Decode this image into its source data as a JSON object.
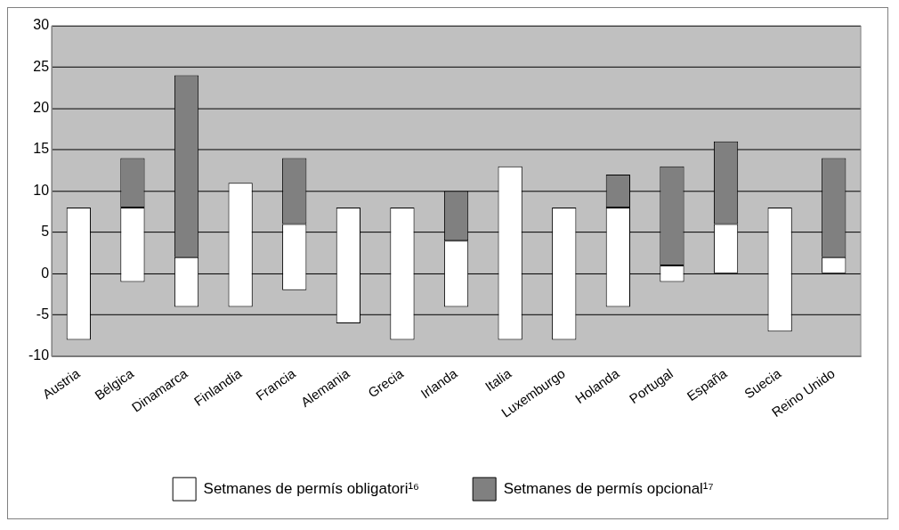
{
  "chart_data": {
    "type": "bar",
    "categories": [
      "Austria",
      "Bélgica",
      "Dinamarca",
      "Finlandia",
      "Francia",
      "Alemania",
      "Grecia",
      "Irlanda",
      "Italia",
      "Luxemburgo",
      "Holanda",
      "Portugal",
      "España",
      "Suecia",
      "Reino Unido"
    ],
    "series": [
      {
        "name": "Setmanes de permís obligatori¹⁶",
        "color": "#ffffff",
        "base": [
          -8,
          -1,
          -4,
          -4,
          -2,
          -6,
          -8,
          -4,
          -8,
          -8,
          -4,
          -1,
          0,
          -7,
          0
        ],
        "values": [
          16,
          9,
          6,
          15,
          8,
          14,
          16,
          8,
          21,
          16,
          12,
          2,
          6,
          15,
          2
        ]
      },
      {
        "name": "Setmanes de permís opcional¹⁷",
        "color": "#808080",
        "base": [
          null,
          8,
          2,
          null,
          6,
          null,
          null,
          4,
          null,
          null,
          8,
          1,
          6,
          null,
          2
        ],
        "values": [
          null,
          6,
          22,
          null,
          8,
          null,
          null,
          6,
          null,
          null,
          4,
          12,
          10,
          null,
          12
        ]
      }
    ],
    "ylim": [
      -10,
      30
    ],
    "yticks": [
      -10,
      -5,
      0,
      5,
      10,
      15,
      20,
      25,
      30
    ],
    "grid": "y",
    "legend": "bottom"
  }
}
